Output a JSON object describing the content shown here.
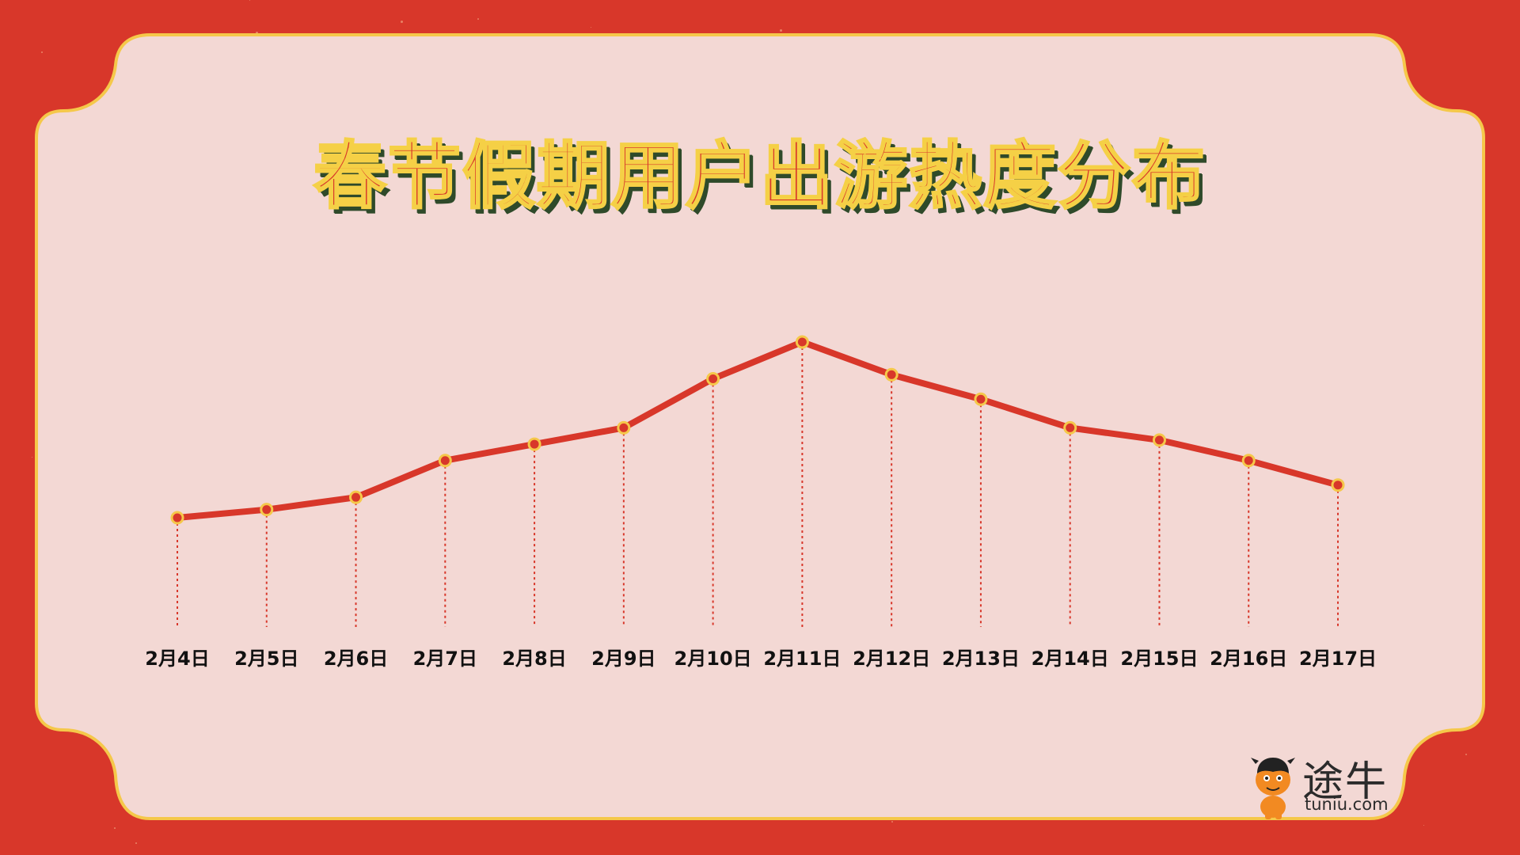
{
  "title": "春节假期用户出游热度分布",
  "brand": {
    "name": "途牛",
    "url": "tuniu.com"
  },
  "colors": {
    "background": "#d8372a",
    "panel": "#f3d8d4",
    "border": "#f5c84a",
    "line": "#d8372a",
    "marker_fill": "#d8372a",
    "marker_ring": "#f5c84a"
  },
  "chart_data": {
    "type": "line",
    "categories": [
      "2月4日",
      "2月5日",
      "2月6日",
      "2月7日",
      "2月8日",
      "2月9日",
      "2月10日",
      "2月11日",
      "2月12日",
      "2月13日",
      "2月14日",
      "2月15日",
      "2月16日",
      "2月17日"
    ],
    "series": [
      {
        "values": [
          22,
          24,
          27,
          36,
          40,
          44,
          56,
          65,
          57,
          51,
          44,
          41,
          36,
          30
        ]
      }
    ],
    "ylim": [
      0,
      70
    ],
    "grid": false,
    "legend": "none",
    "drop_lines": true,
    "y_axis_visible": false
  }
}
